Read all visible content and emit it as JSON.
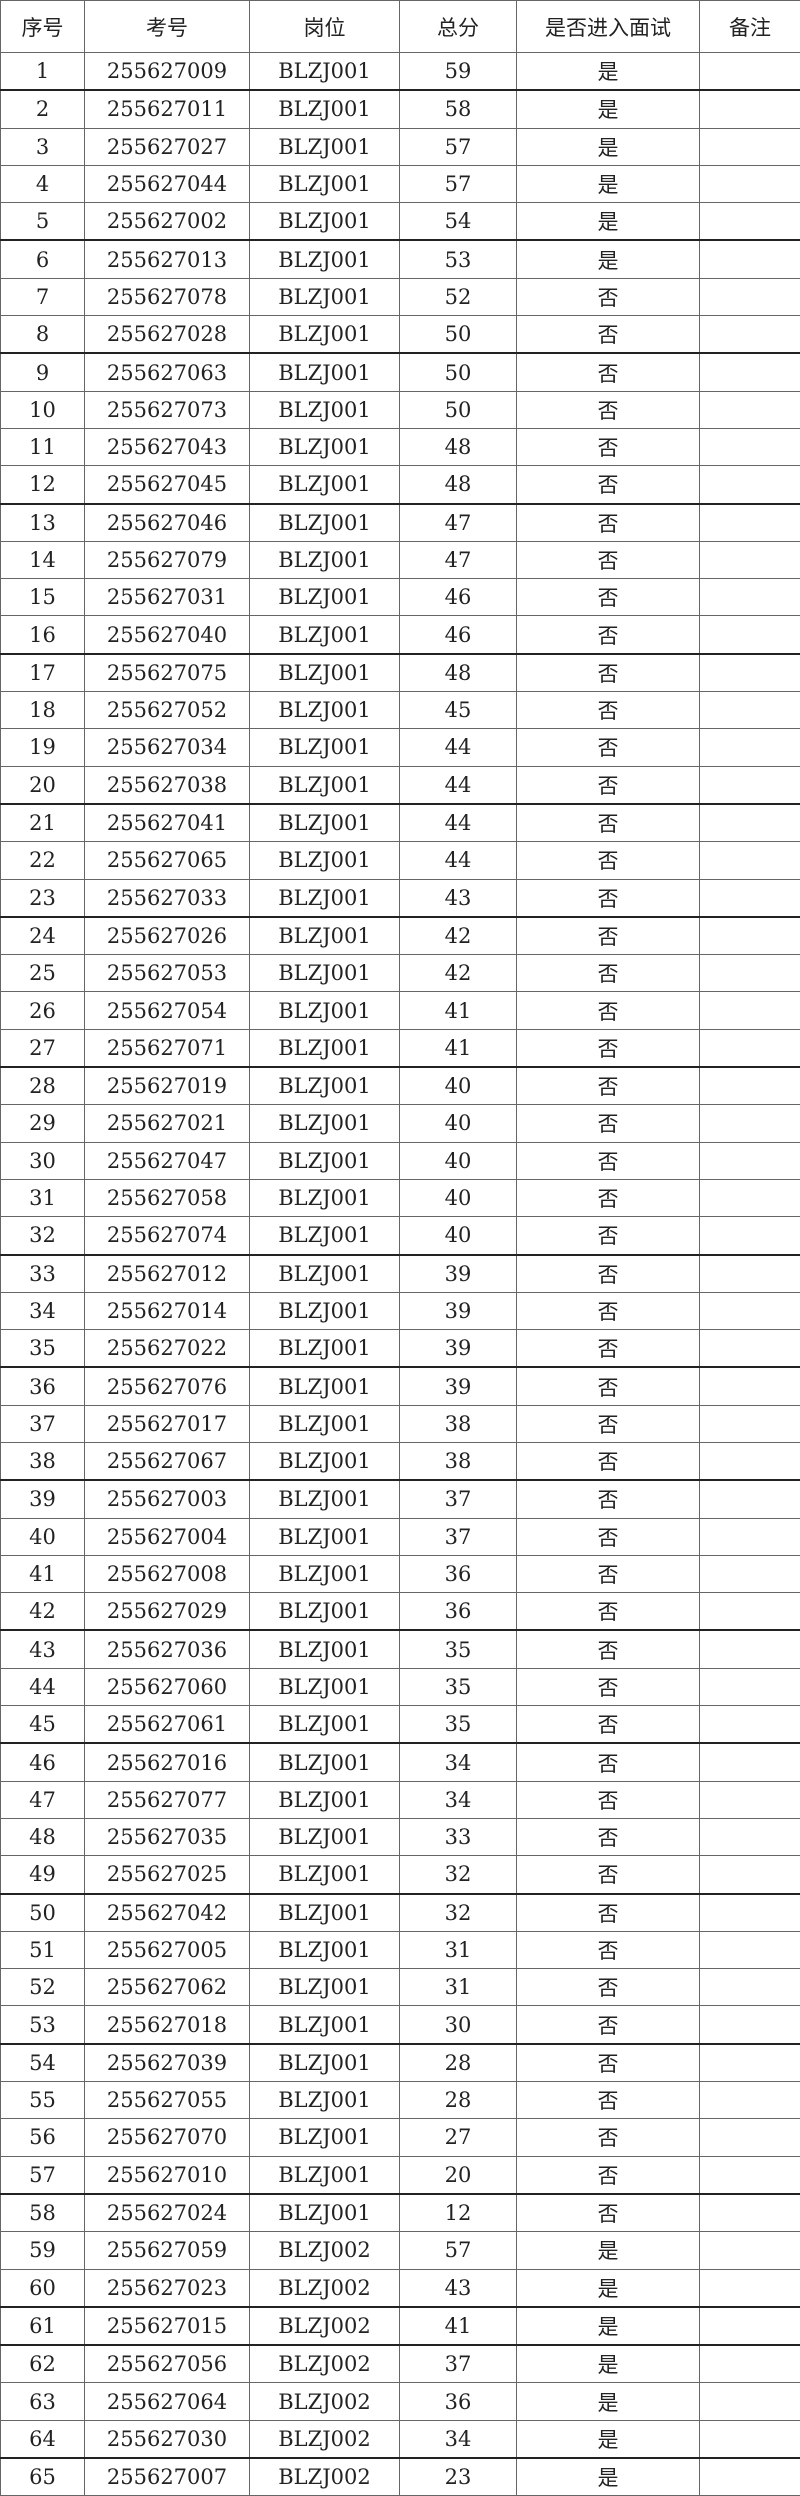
{
  "headers": [
    "序号",
    "考号",
    "岗位",
    "总分",
    "是否进入面试",
    "备注"
  ],
  "rows": [
    [
      "1",
      "255627009",
      "BLZJ001",
      "59",
      "是",
      ""
    ],
    [
      "2",
      "255627011",
      "BLZJ001",
      "58",
      "是",
      ""
    ],
    [
      "3",
      "255627027",
      "BLZJ001",
      "57",
      "是",
      ""
    ],
    [
      "4",
      "255627044",
      "BLZJ001",
      "57",
      "是",
      ""
    ],
    [
      "5",
      "255627002",
      "BLZJ001",
      "54",
      "是",
      ""
    ],
    [
      "6",
      "255627013",
      "BLZJ001",
      "53",
      "是",
      ""
    ],
    [
      "7",
      "255627078",
      "BLZJ001",
      "52",
      "否",
      ""
    ],
    [
      "8",
      "255627028",
      "BLZJ001",
      "50",
      "否",
      ""
    ],
    [
      "9",
      "255627063",
      "BLZJ001",
      "50",
      "否",
      ""
    ],
    [
      "10",
      "255627073",
      "BLZJ001",
      "50",
      "否",
      ""
    ],
    [
      "11",
      "255627043",
      "BLZJ001",
      "48",
      "否",
      ""
    ],
    [
      "12",
      "255627045",
      "BLZJ001",
      "48",
      "否",
      ""
    ],
    [
      "13",
      "255627046",
      "BLZJ001",
      "47",
      "否",
      ""
    ],
    [
      "14",
      "255627079",
      "BLZJ001",
      "47",
      "否",
      ""
    ],
    [
      "15",
      "255627031",
      "BLZJ001",
      "46",
      "否",
      ""
    ],
    [
      "16",
      "255627040",
      "BLZJ001",
      "46",
      "否",
      ""
    ],
    [
      "17",
      "255627075",
      "BLZJ001",
      "48",
      "否",
      ""
    ],
    [
      "18",
      "255627052",
      "BLZJ001",
      "45",
      "否",
      ""
    ],
    [
      "19",
      "255627034",
      "BLZJ001",
      "44",
      "否",
      ""
    ],
    [
      "20",
      "255627038",
      "BLZJ001",
      "44",
      "否",
      ""
    ],
    [
      "21",
      "255627041",
      "BLZJ001",
      "44",
      "否",
      ""
    ],
    [
      "22",
      "255627065",
      "BLZJ001",
      "44",
      "否",
      ""
    ],
    [
      "23",
      "255627033",
      "BLZJ001",
      "43",
      "否",
      ""
    ],
    [
      "24",
      "255627026",
      "BLZJ001",
      "42",
      "否",
      ""
    ],
    [
      "25",
      "255627053",
      "BLZJ001",
      "42",
      "否",
      ""
    ],
    [
      "26",
      "255627054",
      "BLZJ001",
      "41",
      "否",
      ""
    ],
    [
      "27",
      "255627071",
      "BLZJ001",
      "41",
      "否",
      ""
    ],
    [
      "28",
      "255627019",
      "BLZJ001",
      "40",
      "否",
      ""
    ],
    [
      "29",
      "255627021",
      "BLZJ001",
      "40",
      "否",
      ""
    ],
    [
      "30",
      "255627047",
      "BLZJ001",
      "40",
      "否",
      ""
    ],
    [
      "31",
      "255627058",
      "BLZJ001",
      "40",
      "否",
      ""
    ],
    [
      "32",
      "255627074",
      "BLZJ001",
      "40",
      "否",
      ""
    ],
    [
      "33",
      "255627012",
      "BLZJ001",
      "39",
      "否",
      ""
    ],
    [
      "34",
      "255627014",
      "BLZJ001",
      "39",
      "否",
      ""
    ],
    [
      "35",
      "255627022",
      "BLZJ001",
      "39",
      "否",
      ""
    ],
    [
      "36",
      "255627076",
      "BLZJ001",
      "39",
      "否",
      ""
    ],
    [
      "37",
      "255627017",
      "BLZJ001",
      "38",
      "否",
      ""
    ],
    [
      "38",
      "255627067",
      "BLZJ001",
      "38",
      "否",
      ""
    ],
    [
      "39",
      "255627003",
      "BLZJ001",
      "37",
      "否",
      ""
    ],
    [
      "40",
      "255627004",
      "BLZJ001",
      "37",
      "否",
      ""
    ],
    [
      "41",
      "255627008",
      "BLZJ001",
      "36",
      "否",
      ""
    ],
    [
      "42",
      "255627029",
      "BLZJ001",
      "36",
      "否",
      ""
    ],
    [
      "43",
      "255627036",
      "BLZJ001",
      "35",
      "否",
      ""
    ],
    [
      "44",
      "255627060",
      "BLZJ001",
      "35",
      "否",
      ""
    ],
    [
      "45",
      "255627061",
      "BLZJ001",
      "35",
      "否",
      ""
    ],
    [
      "46",
      "255627016",
      "BLZJ001",
      "34",
      "否",
      ""
    ],
    [
      "47",
      "255627077",
      "BLZJ001",
      "34",
      "否",
      ""
    ],
    [
      "48",
      "255627035",
      "BLZJ001",
      "33",
      "否",
      ""
    ],
    [
      "49",
      "255627025",
      "BLZJ001",
      "32",
      "否",
      ""
    ],
    [
      "50",
      "255627042",
      "BLZJ001",
      "32",
      "否",
      ""
    ],
    [
      "51",
      "255627005",
      "BLZJ001",
      "31",
      "否",
      ""
    ],
    [
      "52",
      "255627062",
      "BLZJ001",
      "31",
      "否",
      ""
    ],
    [
      "53",
      "255627018",
      "BLZJ001",
      "30",
      "否",
      ""
    ],
    [
      "54",
      "255627039",
      "BLZJ001",
      "28",
      "否",
      ""
    ],
    [
      "55",
      "255627055",
      "BLZJ001",
      "28",
      "否",
      ""
    ],
    [
      "56",
      "255627070",
      "BLZJ001",
      "27",
      "否",
      ""
    ],
    [
      "57",
      "255627010",
      "BLZJ001",
      "20",
      "否",
      ""
    ],
    [
      "58",
      "255627024",
      "BLZJ001",
      "12",
      "否",
      ""
    ],
    [
      "59",
      "255627059",
      "BLZJ002",
      "57",
      "是",
      ""
    ],
    [
      "60",
      "255627023",
      "BLZJ002",
      "43",
      "是",
      ""
    ],
    [
      "61",
      "255627015",
      "BLZJ002",
      "41",
      "是",
      ""
    ],
    [
      "62",
      "255627056",
      "BLZJ002",
      "37",
      "是",
      ""
    ],
    [
      "63",
      "255627064",
      "BLZJ002",
      "36",
      "是",
      ""
    ],
    [
      "64",
      "255627030",
      "BLZJ002",
      "34",
      "是",
      ""
    ],
    [
      "65",
      "255627007",
      "BLZJ002",
      "23",
      "是",
      ""
    ]
  ]
}
